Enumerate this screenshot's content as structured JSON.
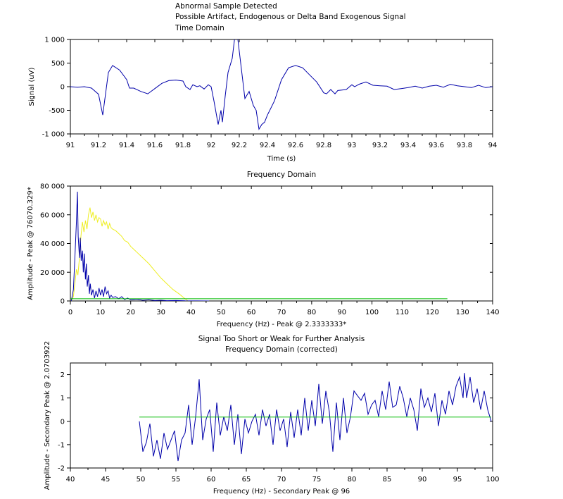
{
  "chart_data": [
    {
      "type": "line",
      "title_lines": [
        "Abnormal Sample Detected",
        "Possible Artifact, Endogenous or Delta Band Exogenous Signal",
        "Time Domain"
      ],
      "xlabel": "Time (s)",
      "ylabel": "Signal (uV)",
      "xlim": [
        91,
        94
      ],
      "ylim": [
        -1000,
        1000
      ],
      "xticks": [
        91,
        91.2,
        91.4,
        91.6,
        91.8,
        92,
        92.2,
        92.4,
        92.6,
        92.8,
        93,
        93.2,
        93.4,
        93.6,
        93.8,
        94
      ],
      "xtick_labels": [
        "91",
        "91.2",
        "91.4",
        "91.6",
        "91.8",
        "92",
        "92.2",
        "92.4",
        "92.6",
        "92.8",
        "93",
        "93.2",
        "93.4",
        "93.6",
        "93.8",
        "94"
      ],
      "yticks": [
        -1000,
        -500,
        0,
        500,
        1000
      ],
      "ytick_labels": [
        "-1 000",
        "-500",
        "0",
        "500",
        "1 000"
      ],
      "grid": false,
      "series": [
        {
          "color": "#0000aa",
          "x": [
            91.0,
            91.05,
            91.1,
            91.15,
            91.2,
            91.23,
            91.25,
            91.27,
            91.3,
            91.35,
            91.4,
            91.42,
            91.45,
            91.5,
            91.55,
            91.6,
            91.65,
            91.7,
            91.75,
            91.8,
            91.82,
            91.85,
            91.87,
            91.9,
            91.92,
            91.95,
            91.98,
            92.0,
            92.02,
            92.05,
            92.07,
            92.08,
            92.1,
            92.12,
            92.15,
            92.17,
            92.19,
            92.21,
            92.24,
            92.27,
            92.29,
            92.3,
            92.32,
            92.34,
            92.36,
            92.38,
            92.4,
            92.45,
            92.5,
            92.55,
            92.6,
            92.65,
            92.7,
            92.75,
            92.8,
            92.82,
            92.85,
            92.88,
            92.9,
            92.93,
            92.96,
            93.0,
            93.02,
            93.05,
            93.1,
            93.15,
            93.2,
            93.25,
            93.3,
            93.35,
            93.4,
            93.45,
            93.5,
            93.55,
            93.6,
            93.65,
            93.7,
            93.75,
            93.8,
            93.85,
            93.9,
            93.95,
            94.0
          ],
          "y": [
            0,
            -10,
            0,
            -30,
            -160,
            -600,
            -150,
            300,
            450,
            350,
            150,
            -30,
            -30,
            -100,
            -150,
            -40,
            70,
            130,
            140,
            120,
            0,
            -60,
            40,
            0,
            20,
            -50,
            40,
            0,
            -300,
            -800,
            -500,
            -750,
            -200,
            300,
            600,
            1100,
            1000,
            500,
            -250,
            -100,
            -300,
            -400,
            -500,
            -900,
            -800,
            -750,
            -600,
            -300,
            150,
            400,
            450,
            400,
            250,
            100,
            -130,
            -150,
            -60,
            -150,
            -80,
            -70,
            -60,
            40,
            0,
            50,
            100,
            30,
            20,
            10,
            -60,
            -40,
            -20,
            10,
            -30,
            10,
            30,
            -10,
            50,
            20,
            0,
            -20,
            30,
            -20,
            0
          ]
        }
      ]
    },
    {
      "type": "line",
      "title": "Frequency Domain",
      "xlabel": "Frequency (Hz) - Peak @ 2.3333333*",
      "ylabel": "Amplitude - Peak @ 76070.329*",
      "xlim": [
        0,
        140
      ],
      "ylim": [
        0,
        80000
      ],
      "xticks": [
        0,
        10,
        20,
        30,
        40,
        50,
        60,
        70,
        80,
        90,
        100,
        110,
        120,
        130,
        140
      ],
      "xtick_labels": [
        "0",
        "10",
        "20",
        "30",
        "40",
        "50",
        "60",
        "70",
        "80",
        "90",
        "100",
        "110",
        "120",
        "130",
        "140"
      ],
      "yticks": [
        0,
        20000,
        40000,
        60000,
        80000
      ],
      "ytick_labels": [
        "0",
        "20 000",
        "40 000",
        "60 000",
        "80 000"
      ],
      "grid": false,
      "series": [
        {
          "color": "#eeee22",
          "x": [
            0.3,
            1.0,
            1.5,
            2.0,
            2.5,
            3.0,
            3.5,
            4.0,
            4.5,
            5.0,
            5.5,
            6.0,
            6.5,
            7.0,
            7.5,
            8.0,
            8.5,
            9.0,
            9.5,
            10.0,
            10.5,
            11.0,
            11.5,
            12.0,
            12.5,
            13.0,
            13.5,
            14.0,
            15.0,
            16.0,
            17.0,
            18.0,
            19.0,
            20.0,
            21.0,
            22.0,
            24.0,
            26.0,
            28.0,
            30.0,
            32.0,
            34.0,
            36.0,
            38.0,
            39.0
          ],
          "y": [
            0,
            3000,
            12000,
            22000,
            18000,
            30000,
            45000,
            55000,
            48000,
            56000,
            50000,
            60000,
            65000,
            58000,
            62000,
            56000,
            60000,
            55000,
            58000,
            57000,
            52000,
            56000,
            53000,
            55000,
            50000,
            54000,
            51000,
            50000,
            49000,
            47000,
            45000,
            42000,
            41000,
            38000,
            36000,
            34000,
            30000,
            26000,
            21000,
            16000,
            12000,
            8000,
            5000,
            1500,
            0
          ]
        },
        {
          "color": "#0000aa",
          "x": [
            0.3,
            1.0,
            1.5,
            2.0,
            2.33,
            2.6,
            3.0,
            3.3,
            3.6,
            4.0,
            4.3,
            4.6,
            5.0,
            5.3,
            5.6,
            6.0,
            6.3,
            6.6,
            7.0,
            7.5,
            8.0,
            8.5,
            9.0,
            9.5,
            10.0,
            10.5,
            11.0,
            11.5,
            12.0,
            12.5,
            13.0,
            13.5,
            14.0,
            15.0,
            16.0,
            17.0,
            18.0,
            19.0,
            20.0,
            22.0,
            24.0,
            26.0,
            28.0,
            30.0,
            32.0,
            35.0,
            38.0,
            42.0,
            46.0
          ],
          "y": [
            0,
            8000,
            30000,
            55000,
            76070,
            45000,
            30000,
            44000,
            28000,
            35000,
            20000,
            33000,
            15000,
            26000,
            10000,
            18000,
            5000,
            12000,
            4000,
            8000,
            2000,
            7000,
            3000,
            9000,
            4000,
            8000,
            3000,
            10000,
            5000,
            7000,
            2000,
            4000,
            2500,
            3000,
            1500,
            3000,
            1000,
            2000,
            800,
            1200,
            500,
            800,
            300,
            500,
            200,
            300,
            100,
            50,
            0
          ]
        },
        {
          "color": "#00bb00",
          "x": [
            0,
            125
          ],
          "y": [
            1500,
            1500
          ]
        }
      ]
    },
    {
      "type": "line",
      "title_lines": [
        "Signal Too Short or Weak for Further Analysis",
        "Frequency Domain (corrected)"
      ],
      "xlabel": "Frequency (Hz) - Secondary Peak @ 96",
      "ylabel": "Amplitude - Secondary Peak @ 2.0703922",
      "xlim": [
        40,
        100
      ],
      "ylim": [
        -2,
        2.5
      ],
      "xticks": [
        40,
        45,
        50,
        55,
        60,
        65,
        70,
        75,
        80,
        85,
        90,
        95,
        100
      ],
      "xtick_labels": [
        "40",
        "45",
        "50",
        "55",
        "60",
        "65",
        "70",
        "75",
        "80",
        "85",
        "90",
        "95",
        "100"
      ],
      "yticks": [
        -2,
        -1,
        0,
        1,
        2
      ],
      "ytick_labels": [
        "-2",
        "-1",
        "0",
        "1",
        "2"
      ],
      "grid": false,
      "series": [
        {
          "color": "#0000aa",
          "x": [
            49.8,
            50.3,
            50.8,
            51.3,
            51.8,
            52.3,
            52.8,
            53.3,
            53.8,
            54.3,
            54.8,
            55.3,
            55.8,
            56.3,
            56.8,
            57.3,
            57.8,
            58.3,
            58.8,
            59.3,
            59.8,
            60.3,
            60.8,
            61.3,
            61.8,
            62.3,
            62.8,
            63.3,
            63.8,
            64.3,
            64.8,
            65.3,
            65.8,
            66.3,
            66.8,
            67.3,
            67.8,
            68.3,
            68.8,
            69.3,
            69.8,
            70.3,
            70.8,
            71.3,
            71.8,
            72.3,
            72.8,
            73.3,
            73.8,
            74.3,
            74.8,
            75.3,
            75.8,
            76.3,
            76.8,
            77.3,
            77.8,
            78.3,
            78.8,
            79.3,
            79.8,
            80.3,
            80.8,
            81.3,
            81.8,
            82.3,
            82.8,
            83.3,
            83.8,
            84.3,
            84.8,
            85.3,
            85.8,
            86.3,
            86.8,
            87.3,
            87.8,
            88.3,
            88.8,
            89.3,
            89.8,
            90.3,
            90.8,
            91.3,
            91.8,
            92.3,
            92.8,
            93.3,
            93.8,
            94.3,
            94.8,
            95.3,
            95.8,
            96.0,
            96.3,
            96.8,
            97.3,
            97.8,
            98.3,
            98.8,
            99.3,
            99.8
          ],
          "y": [
            0,
            -1.3,
            -0.9,
            -0.1,
            -1.5,
            -0.8,
            -1.6,
            -0.5,
            -1.2,
            -0.8,
            -0.4,
            -1.7,
            -0.8,
            -0.5,
            0.7,
            -1.0,
            0.2,
            1.8,
            -0.8,
            0.1,
            0.5,
            -1.3,
            0.8,
            -0.6,
            0.2,
            -0.4,
            0.7,
            -1.0,
            0.3,
            -1.4,
            0.1,
            -0.5,
            0.0,
            0.3,
            -0.6,
            0.5,
            -0.2,
            0.3,
            -1.0,
            0.5,
            -0.4,
            0.1,
            -1.1,
            0.4,
            -0.7,
            0.5,
            -0.6,
            1.0,
            -0.4,
            0.9,
            -0.2,
            1.6,
            -0.1,
            1.3,
            0.4,
            -1.3,
            0.8,
            -0.8,
            1.0,
            -0.5,
            0.2,
            1.3,
            1.1,
            0.9,
            1.2,
            0.3,
            0.7,
            0.9,
            0.2,
            1.3,
            0.5,
            1.7,
            0.6,
            0.7,
            1.5,
            1.0,
            0.2,
            1.0,
            0.5,
            -0.4,
            1.4,
            0.6,
            1.0,
            0.4,
            1.2,
            -0.2,
            0.9,
            0.3,
            1.3,
            0.7,
            1.5,
            1.9,
            1.0,
            2.07,
            1.0,
            1.9,
            0.8,
            1.4,
            0.5,
            1.3,
            0.5,
            0.0
          ]
        },
        {
          "color": "#00bb00",
          "x": [
            49.8,
            99.8
          ],
          "y": [
            0.18,
            0.18
          ]
        }
      ]
    }
  ]
}
